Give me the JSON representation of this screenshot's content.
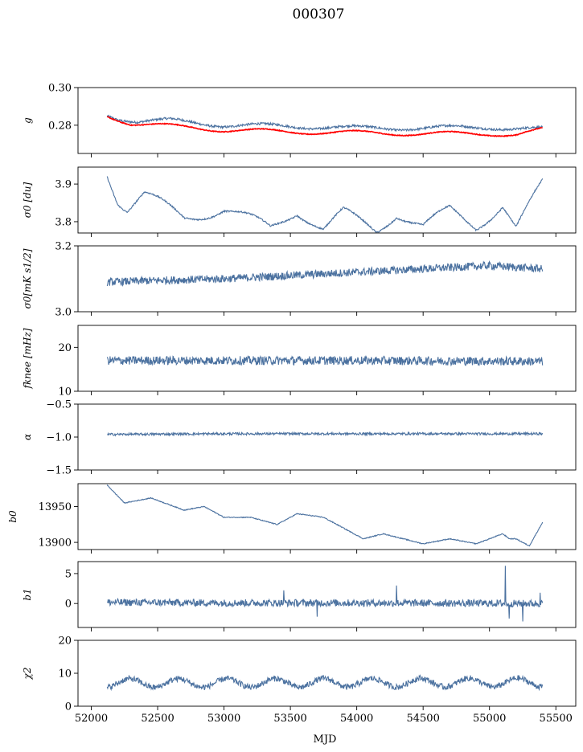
{
  "figure": {
    "title": "000307",
    "xlabel": "MJD",
    "x_ticks": [
      52000,
      52500,
      53000,
      53500,
      54000,
      54500,
      55000,
      55500
    ],
    "xlim": [
      51900,
      55650
    ]
  },
  "chart_data": [
    {
      "type": "line",
      "ylabel": "g",
      "ylim": [
        0.265,
        0.3
      ],
      "y_ticks": [
        0.28,
        0.3
      ],
      "y_tick_labels": [
        "0.28",
        "0.30"
      ],
      "x_range": [
        52120,
        55400
      ],
      "series": [
        {
          "color": "#4c72a0",
          "shape": "sine",
          "base": 0.2797,
          "amp": 0.0019,
          "period": 700,
          "phase": 52420,
          "trend": -0.0029,
          "noise": 0.0006,
          "anchors": [
            [
              52120,
              0.2855
            ],
            [
              52200,
              0.2838
            ],
            [
              52350,
              0.2822
            ],
            [
              52600,
              0.2825
            ],
            [
              53000,
              0.28
            ],
            [
              53500,
              0.2795
            ],
            [
              54000,
              0.2785
            ],
            [
              54500,
              0.2785
            ],
            [
              55000,
              0.279
            ],
            [
              55200,
              0.2782
            ],
            [
              55400,
              0.2778
            ]
          ]
        },
        {
          "color": "#ff0000",
          "shape": "sine",
          "base": 0.2772,
          "amp": 0.0019,
          "period": 700,
          "phase": 52420,
          "trend": -0.003,
          "noise": 0.0002,
          "anchors": [
            [
              52120,
              0.285
            ],
            [
              52300,
              0.281
            ],
            [
              53000,
              0.2775
            ],
            [
              53500,
              0.2765
            ],
            [
              54000,
              0.276
            ],
            [
              54500,
              0.2755
            ],
            [
              55000,
              0.2755
            ],
            [
              55200,
              0.275
            ],
            [
              55400,
              0.2775
            ]
          ]
        }
      ]
    },
    {
      "type": "line",
      "ylabel": "σ0 [du]",
      "ylim": [
        3.77,
        3.945
      ],
      "y_ticks": [
        3.8,
        3.9
      ],
      "y_tick_labels": [
        "3.8",
        "3.9"
      ],
      "x_range": [
        52120,
        55400
      ],
      "series": [
        {
          "color": "#4c72a0",
          "shape": "sine",
          "base": 3.815,
          "amp": 0.027,
          "period": 700,
          "phase": 52350,
          "trend": 0.0,
          "noise": 0.002,
          "anchors": [
            [
              52120,
              3.933
            ],
            [
              52200,
              3.86
            ],
            [
              52270,
              3.835
            ],
            [
              52400,
              3.872
            ],
            [
              52700,
              3.81
            ],
            [
              53000,
              3.835
            ],
            [
              53350,
              3.782
            ],
            [
              53550,
              3.832
            ],
            [
              53750,
              3.78
            ],
            [
              53900,
              3.822
            ],
            [
              54150,
              3.778
            ],
            [
              54300,
              3.825
            ],
            [
              54500,
              3.785
            ],
            [
              54700,
              3.83
            ],
            [
              54900,
              3.79
            ],
            [
              55100,
              3.845
            ],
            [
              55200,
              3.78
            ],
            [
              55300,
              3.84
            ],
            [
              55400,
              3.9
            ]
          ]
        }
      ]
    },
    {
      "type": "line",
      "ylabel": "σ0[mK s1/2]",
      "ylim": [
        3.0,
        3.2
      ],
      "y_ticks": [
        3.0,
        3.2
      ],
      "y_tick_labels": [
        "3.0",
        "3.2"
      ],
      "x_range": [
        52120,
        55400
      ],
      "series": [
        {
          "color": "#4c72a0",
          "shape": "noise",
          "noise": 0.012,
          "anchors": [
            [
              52120,
              3.09
            ],
            [
              52500,
              3.095
            ],
            [
              53000,
              3.1
            ],
            [
              53500,
              3.11
            ],
            [
              54000,
              3.12
            ],
            [
              54500,
              3.13
            ],
            [
              55000,
              3.14
            ],
            [
              55400,
              3.13
            ]
          ]
        }
      ]
    },
    {
      "type": "line",
      "ylabel": "fknee [mHz]",
      "ylim": [
        10,
        25
      ],
      "y_ticks": [
        10,
        20
      ],
      "y_tick_labels": [
        "10",
        "20"
      ],
      "x_range": [
        52120,
        55400
      ],
      "series": [
        {
          "color": "#4c72a0",
          "shape": "noise",
          "noise": 1.0,
          "anchors": [
            [
              52120,
              17.0
            ],
            [
              53000,
              17.0
            ],
            [
              54000,
              17.0
            ],
            [
              55400,
              16.8
            ]
          ]
        }
      ]
    },
    {
      "type": "line",
      "ylabel": "α",
      "ylim": [
        -1.5,
        -0.5
      ],
      "y_ticks": [
        -1.5,
        -1.0,
        -0.5
      ],
      "y_tick_labels": [
        "−1.5",
        "−1.0",
        "−0.5"
      ],
      "x_range": [
        52120,
        55400
      ],
      "series": [
        {
          "color": "#4c72a0",
          "shape": "noise",
          "noise": 0.018,
          "anchors": [
            [
              52120,
              -0.96
            ],
            [
              53000,
              -0.95
            ],
            [
              54000,
              -0.95
            ],
            [
              55400,
              -0.95
            ]
          ]
        }
      ]
    },
    {
      "type": "line",
      "ylabel": "b0",
      "ylim": [
        13890,
        13982
      ],
      "y_ticks": [
        13900,
        13950
      ],
      "y_tick_labels": [
        "13900",
        "13950"
      ],
      "x_range": [
        52120,
        55400
      ],
      "series": [
        {
          "color": "#4c72a0",
          "shape": "noise",
          "noise": 0.6,
          "anchors": [
            [
              52120,
              13980
            ],
            [
              52250,
              13955
            ],
            [
              52450,
              13962
            ],
            [
              52700,
              13945
            ],
            [
              52850,
              13950
            ],
            [
              53000,
              13935
            ],
            [
              53200,
              13935
            ],
            [
              53400,
              13925
            ],
            [
              53550,
              13940
            ],
            [
              53750,
              13935
            ],
            [
              53850,
              13925
            ],
            [
              54050,
              13905
            ],
            [
              54200,
              13912
            ],
            [
              54350,
              13905
            ],
            [
              54500,
              13898
            ],
            [
              54700,
              13905
            ],
            [
              54900,
              13898
            ],
            [
              55100,
              13912
            ],
            [
              55150,
              13905
            ],
            [
              55200,
              13905
            ],
            [
              55300,
              13895
            ],
            [
              55400,
              13928
            ]
          ]
        }
      ]
    },
    {
      "type": "line",
      "ylabel": "b1",
      "ylim": [
        -4,
        7
      ],
      "y_ticks": [
        0,
        5
      ],
      "y_tick_labels": [
        "0",
        "5"
      ],
      "x_range": [
        52120,
        55400
      ],
      "series": [
        {
          "color": "#4c72a0",
          "shape": "noise",
          "noise": 0.6,
          "anchors": [
            [
              52120,
              0.2
            ],
            [
              53000,
              0.1
            ],
            [
              54000,
              0.1
            ],
            [
              55400,
              0.0
            ]
          ],
          "spikes": [
            [
              53450,
              2.2
            ],
            [
              53700,
              -2.2
            ],
            [
              54300,
              3.0
            ],
            [
              55120,
              6.3
            ],
            [
              55150,
              -2.5
            ],
            [
              55250,
              -3.0
            ],
            [
              55380,
              1.8
            ]
          ]
        }
      ]
    },
    {
      "type": "line",
      "ylabel": "χ2",
      "ylim": [
        0,
        20
      ],
      "y_ticks": [
        0,
        10,
        20
      ],
      "y_tick_labels": [
        "0",
        "10",
        "20"
      ],
      "x_range": [
        52120,
        55400
      ],
      "series": [
        {
          "color": "#4c72a0",
          "shape": "sine",
          "base": 7.2,
          "amp": 2.2,
          "period": 365,
          "phase": 52200,
          "trend": 0.0,
          "noise": 0.9,
          "anchors": [
            [
              52120,
              7.0
            ],
            [
              55400,
              7.2
            ]
          ]
        }
      ]
    }
  ]
}
